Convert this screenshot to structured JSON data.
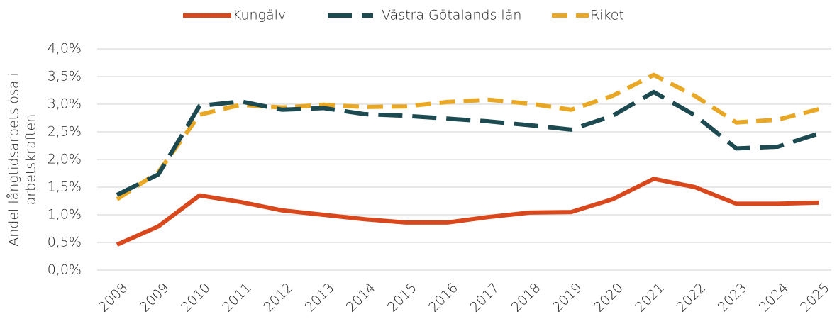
{
  "chart_data": {
    "type": "line",
    "y_label": [
      "Andel långtidsarbetslösa i",
      "arbetskraften"
    ],
    "categories": [
      "2008",
      "2009",
      "2010",
      "2011",
      "2012",
      "2013",
      "2014",
      "2015",
      "2016",
      "2017",
      "2018",
      "2019",
      "2020",
      "2021",
      "2022",
      "2023",
      "2024",
      "2025"
    ],
    "series": [
      {
        "name": "Kungälv",
        "color": "#d9481c",
        "dash": "solid",
        "values": [
          0.46,
          0.79,
          1.35,
          1.23,
          1.08,
          1.0,
          0.92,
          0.86,
          0.86,
          0.96,
          1.04,
          1.05,
          1.28,
          1.65,
          1.5,
          1.2,
          1.2,
          1.22
        ]
      },
      {
        "name": "Västra Götalands län",
        "color": "#1c4a50",
        "dash": "long",
        "values": [
          1.36,
          1.73,
          2.97,
          3.05,
          2.9,
          2.93,
          2.82,
          2.79,
          2.74,
          2.69,
          2.62,
          2.54,
          2.79,
          3.22,
          2.8,
          2.2,
          2.23,
          2.47
        ]
      },
      {
        "name": "Riket",
        "color": "#e8a825",
        "dash": "medium",
        "values": [
          1.28,
          1.77,
          2.81,
          2.99,
          2.94,
          2.99,
          2.95,
          2.96,
          3.04,
          3.08,
          3.01,
          2.9,
          3.15,
          3.53,
          3.15,
          2.67,
          2.72,
          2.91
        ]
      }
    ],
    "ylim": [
      0,
      4
    ],
    "yticks": [
      {
        "value": 0,
        "label": "0,0%"
      },
      {
        "value": 0.5,
        "label": "0,5%"
      },
      {
        "value": 1,
        "label": "1,0%"
      },
      {
        "value": 1.5,
        "label": "1,5%"
      },
      {
        "value": 2,
        "label": "2,0%"
      },
      {
        "value": 2.5,
        "label": "2,5%"
      },
      {
        "value": 3,
        "label": "3,0%"
      },
      {
        "value": 3.5,
        "label": "3,5%"
      },
      {
        "value": 4,
        "label": "4,0%"
      }
    ],
    "grid": true,
    "legend": "top"
  }
}
